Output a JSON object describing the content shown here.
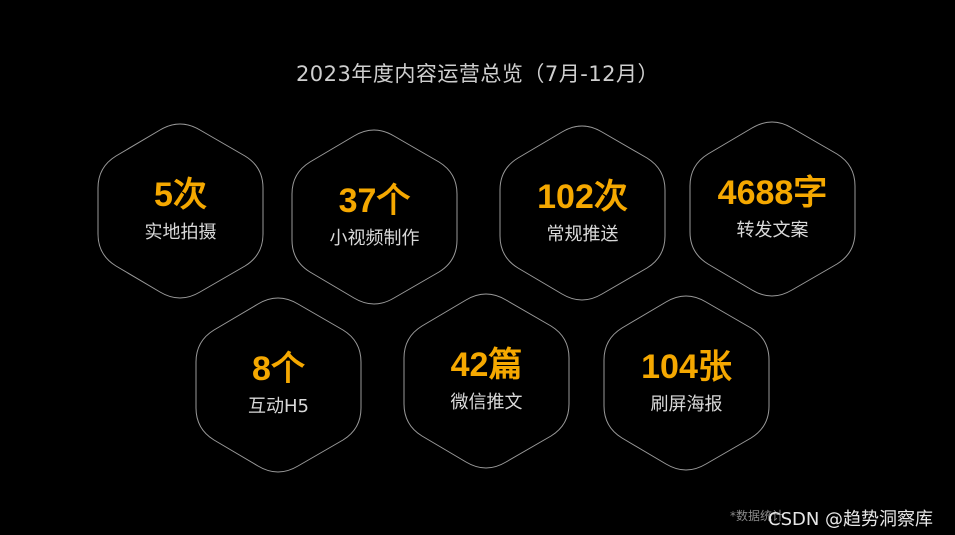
{
  "title": "2023年度内容运营总览（7月-12月）",
  "colors": {
    "background": "#000000",
    "accent": "#f5a800",
    "label": "#d9d9d9",
    "outline": "#9a9a9a"
  },
  "stats": [
    {
      "value": "5次",
      "label": "实地拍摄"
    },
    {
      "value": "37个",
      "label": "小视频制作"
    },
    {
      "value": "102次",
      "label": "常规推送"
    },
    {
      "value": "4688字",
      "label": "转发文案"
    },
    {
      "value": "8个",
      "label": "互动H5"
    },
    {
      "value": "42篇",
      "label": "微信推文"
    },
    {
      "value": "104张",
      "label": "刷屏海报"
    }
  ],
  "footnote": "*数据统计",
  "watermark": "CSDN @趋势洞察库"
}
